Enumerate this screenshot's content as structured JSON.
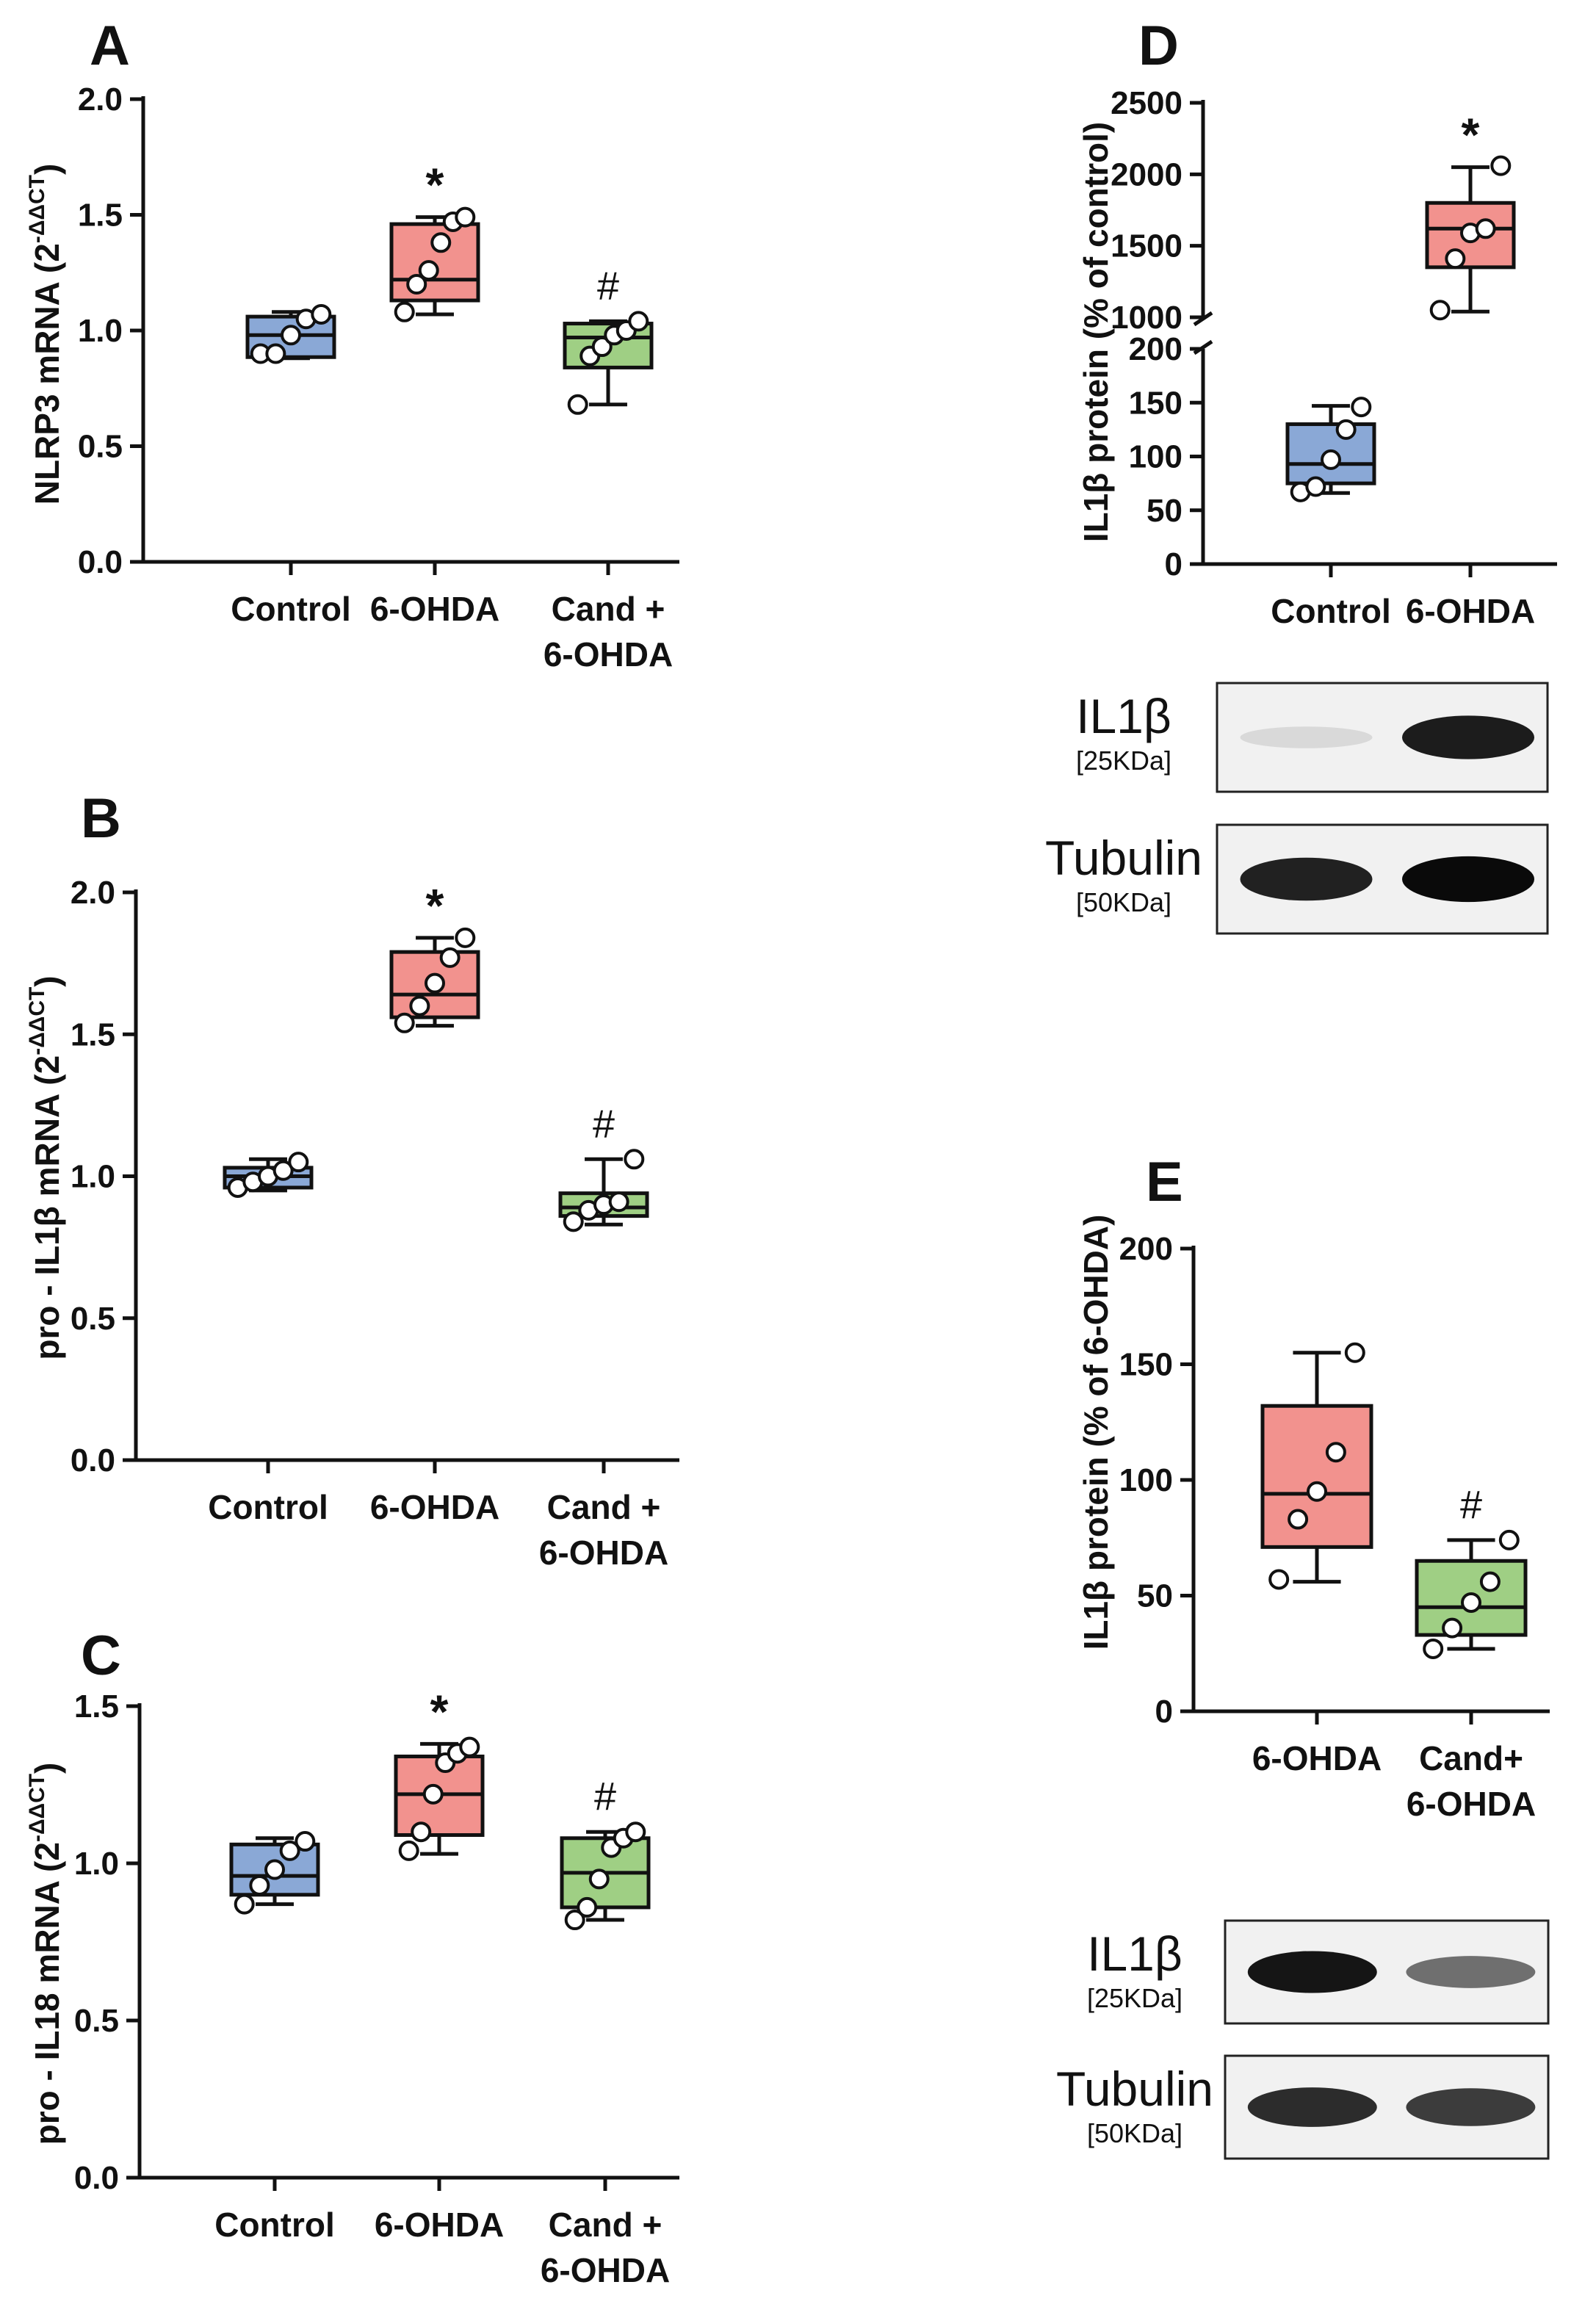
{
  "colors": {
    "control": "#8aa8d6",
    "ohda": "#f2928e",
    "cand": "#9fcf84",
    "axis": "#111111"
  },
  "chart_data": [
    {
      "panel": "A",
      "type": "box",
      "ylabel": "NLRP3 mRNA (2",
      "ylabel_sup": "-ΔΔCT",
      "ylabel_close": ")",
      "ylim": [
        0,
        2.0
      ],
      "yticks": [
        "0.0",
        "0.5",
        "1.0",
        "1.5",
        "2.0"
      ],
      "categories": [
        [
          "Control"
        ],
        [
          "6-OHDA"
        ],
        [
          "Cand +",
          "6-OHDA"
        ]
      ],
      "boxes": [
        {
          "group": "Control",
          "min": 0.88,
          "q1": 0.885,
          "median": 0.98,
          "q3": 1.06,
          "max": 1.08,
          "points": [
            0.9,
            0.9,
            0.98,
            1.05,
            1.07
          ],
          "mark": ""
        },
        {
          "group": "6-OHDA",
          "min": 1.07,
          "q1": 1.13,
          "median": 1.22,
          "q3": 1.46,
          "max": 1.49,
          "points": [
            1.08,
            1.2,
            1.26,
            1.38,
            1.47,
            1.49
          ],
          "mark": "*"
        },
        {
          "group": "Cand + 6-OHDA",
          "min": 0.68,
          "q1": 0.84,
          "median": 0.97,
          "q3": 1.03,
          "max": 1.04,
          "points": [
            0.68,
            0.89,
            0.93,
            0.98,
            1.0,
            1.04
          ],
          "mark": "#"
        }
      ]
    },
    {
      "panel": "B",
      "type": "box",
      "ylabel": "pro - IL1β mRNA (2",
      "ylabel_sup": "-ΔΔCT",
      "ylabel_close": ")",
      "ylim": [
        0,
        2.0
      ],
      "yticks": [
        "0.0",
        "0.5",
        "1.0",
        "1.5",
        "2.0"
      ],
      "categories": [
        [
          "Control"
        ],
        [
          "6-OHDA"
        ],
        [
          "Cand +",
          "6-OHDA"
        ]
      ],
      "boxes": [
        {
          "group": "Control",
          "min": 0.95,
          "q1": 0.96,
          "median": 1.0,
          "q3": 1.03,
          "max": 1.06,
          "points": [
            0.96,
            0.98,
            1.0,
            1.02,
            1.05
          ],
          "mark": ""
        },
        {
          "group": "6-OHDA",
          "min": 1.53,
          "q1": 1.56,
          "median": 1.64,
          "q3": 1.79,
          "max": 1.84,
          "points": [
            1.54,
            1.6,
            1.68,
            1.77,
            1.84
          ],
          "mark": "*"
        },
        {
          "group": "Cand + 6-OHDA",
          "min": 0.83,
          "q1": 0.86,
          "median": 0.89,
          "q3": 0.94,
          "max": 1.06,
          "points": [
            0.84,
            0.88,
            0.9,
            0.91,
            1.06
          ],
          "mark": "#"
        }
      ]
    },
    {
      "panel": "C",
      "type": "box",
      "ylabel": "pro - IL18 mRNA (2",
      "ylabel_sup": "-ΔΔCT",
      "ylabel_close": ")",
      "ylim": [
        0,
        1.5
      ],
      "yticks": [
        "0.0",
        "0.5",
        "1.0",
        "1.5"
      ],
      "categories": [
        [
          "Control"
        ],
        [
          "6-OHDA"
        ],
        [
          "Cand +",
          "6-OHDA"
        ]
      ],
      "boxes": [
        {
          "group": "Control",
          "min": 0.87,
          "q1": 0.9,
          "median": 0.96,
          "q3": 1.06,
          "max": 1.08,
          "points": [
            0.87,
            0.93,
            0.98,
            1.04,
            1.07
          ],
          "mark": ""
        },
        {
          "group": "6-OHDA",
          "min": 1.03,
          "q1": 1.09,
          "median": 1.22,
          "q3": 1.34,
          "max": 1.38,
          "points": [
            1.04,
            1.1,
            1.22,
            1.32,
            1.35,
            1.37
          ],
          "mark": "*"
        },
        {
          "group": "Cand + 6-OHDA",
          "min": 0.82,
          "q1": 0.86,
          "median": 0.97,
          "q3": 1.08,
          "max": 1.1,
          "points": [
            0.82,
            0.86,
            0.95,
            1.05,
            1.08,
            1.1
          ],
          "mark": "#"
        }
      ]
    },
    {
      "panel": "D",
      "type": "box",
      "ylabel": "IL1β protein (% of control)",
      "axis_break": true,
      "ylim_lower": [
        0,
        200
      ],
      "ylim_upper": [
        1000,
        2500
      ],
      "yticks_lower": [
        "0",
        "50",
        "100",
        "150",
        "200"
      ],
      "yticks_upper": [
        "1000",
        "1500",
        "2000",
        "2500"
      ],
      "categories": [
        [
          "Control"
        ],
        [
          "6-OHDA"
        ]
      ],
      "boxes": [
        {
          "group": "Control",
          "min": 66,
          "q1": 75,
          "median": 93,
          "q3": 130,
          "max": 147,
          "points": [
            67,
            72,
            97,
            125,
            146
          ],
          "mark": ""
        },
        {
          "group": "6-OHDA",
          "min": 1040,
          "q1": 1350,
          "median": 1620,
          "q3": 1800,
          "max": 2050,
          "points": [
            1050,
            1410,
            1590,
            1620,
            2060
          ],
          "mark": "*"
        }
      ]
    },
    {
      "panel": "E",
      "type": "box",
      "ylabel": "IL1β protein (% of 6-OHDA)",
      "ylim": [
        0,
        200
      ],
      "yticks": [
        "0",
        "50",
        "100",
        "150",
        "200"
      ],
      "categories": [
        [
          "6-OHDA"
        ],
        [
          "Cand+",
          "6-OHDA"
        ]
      ],
      "boxes": [
        {
          "group": "6-OHDA",
          "min": 56,
          "q1": 71,
          "median": 94,
          "q3": 132,
          "max": 155,
          "points": [
            57,
            83,
            95,
            112,
            155
          ],
          "mark": ""
        },
        {
          "group": "Cand+ 6-OHDA",
          "min": 27,
          "q1": 33,
          "median": 45,
          "q3": 65,
          "max": 74,
          "points": [
            27,
            36,
            47,
            56,
            74
          ],
          "mark": "#"
        }
      ]
    }
  ],
  "blots": {
    "D": [
      {
        "name": "IL1β",
        "kda": "[25KDa]",
        "intensity": [
          0.08,
          0.92
        ]
      },
      {
        "name": "Tubulin",
        "kda": "[50KDa]",
        "intensity": [
          0.9,
          1.0
        ]
      }
    ],
    "E": [
      {
        "name": "IL1β",
        "kda": "[25KDa]",
        "intensity": [
          0.95,
          0.55
        ]
      },
      {
        "name": "Tubulin",
        "kda": "[50KDa]",
        "intensity": [
          0.85,
          0.78
        ]
      }
    ]
  }
}
